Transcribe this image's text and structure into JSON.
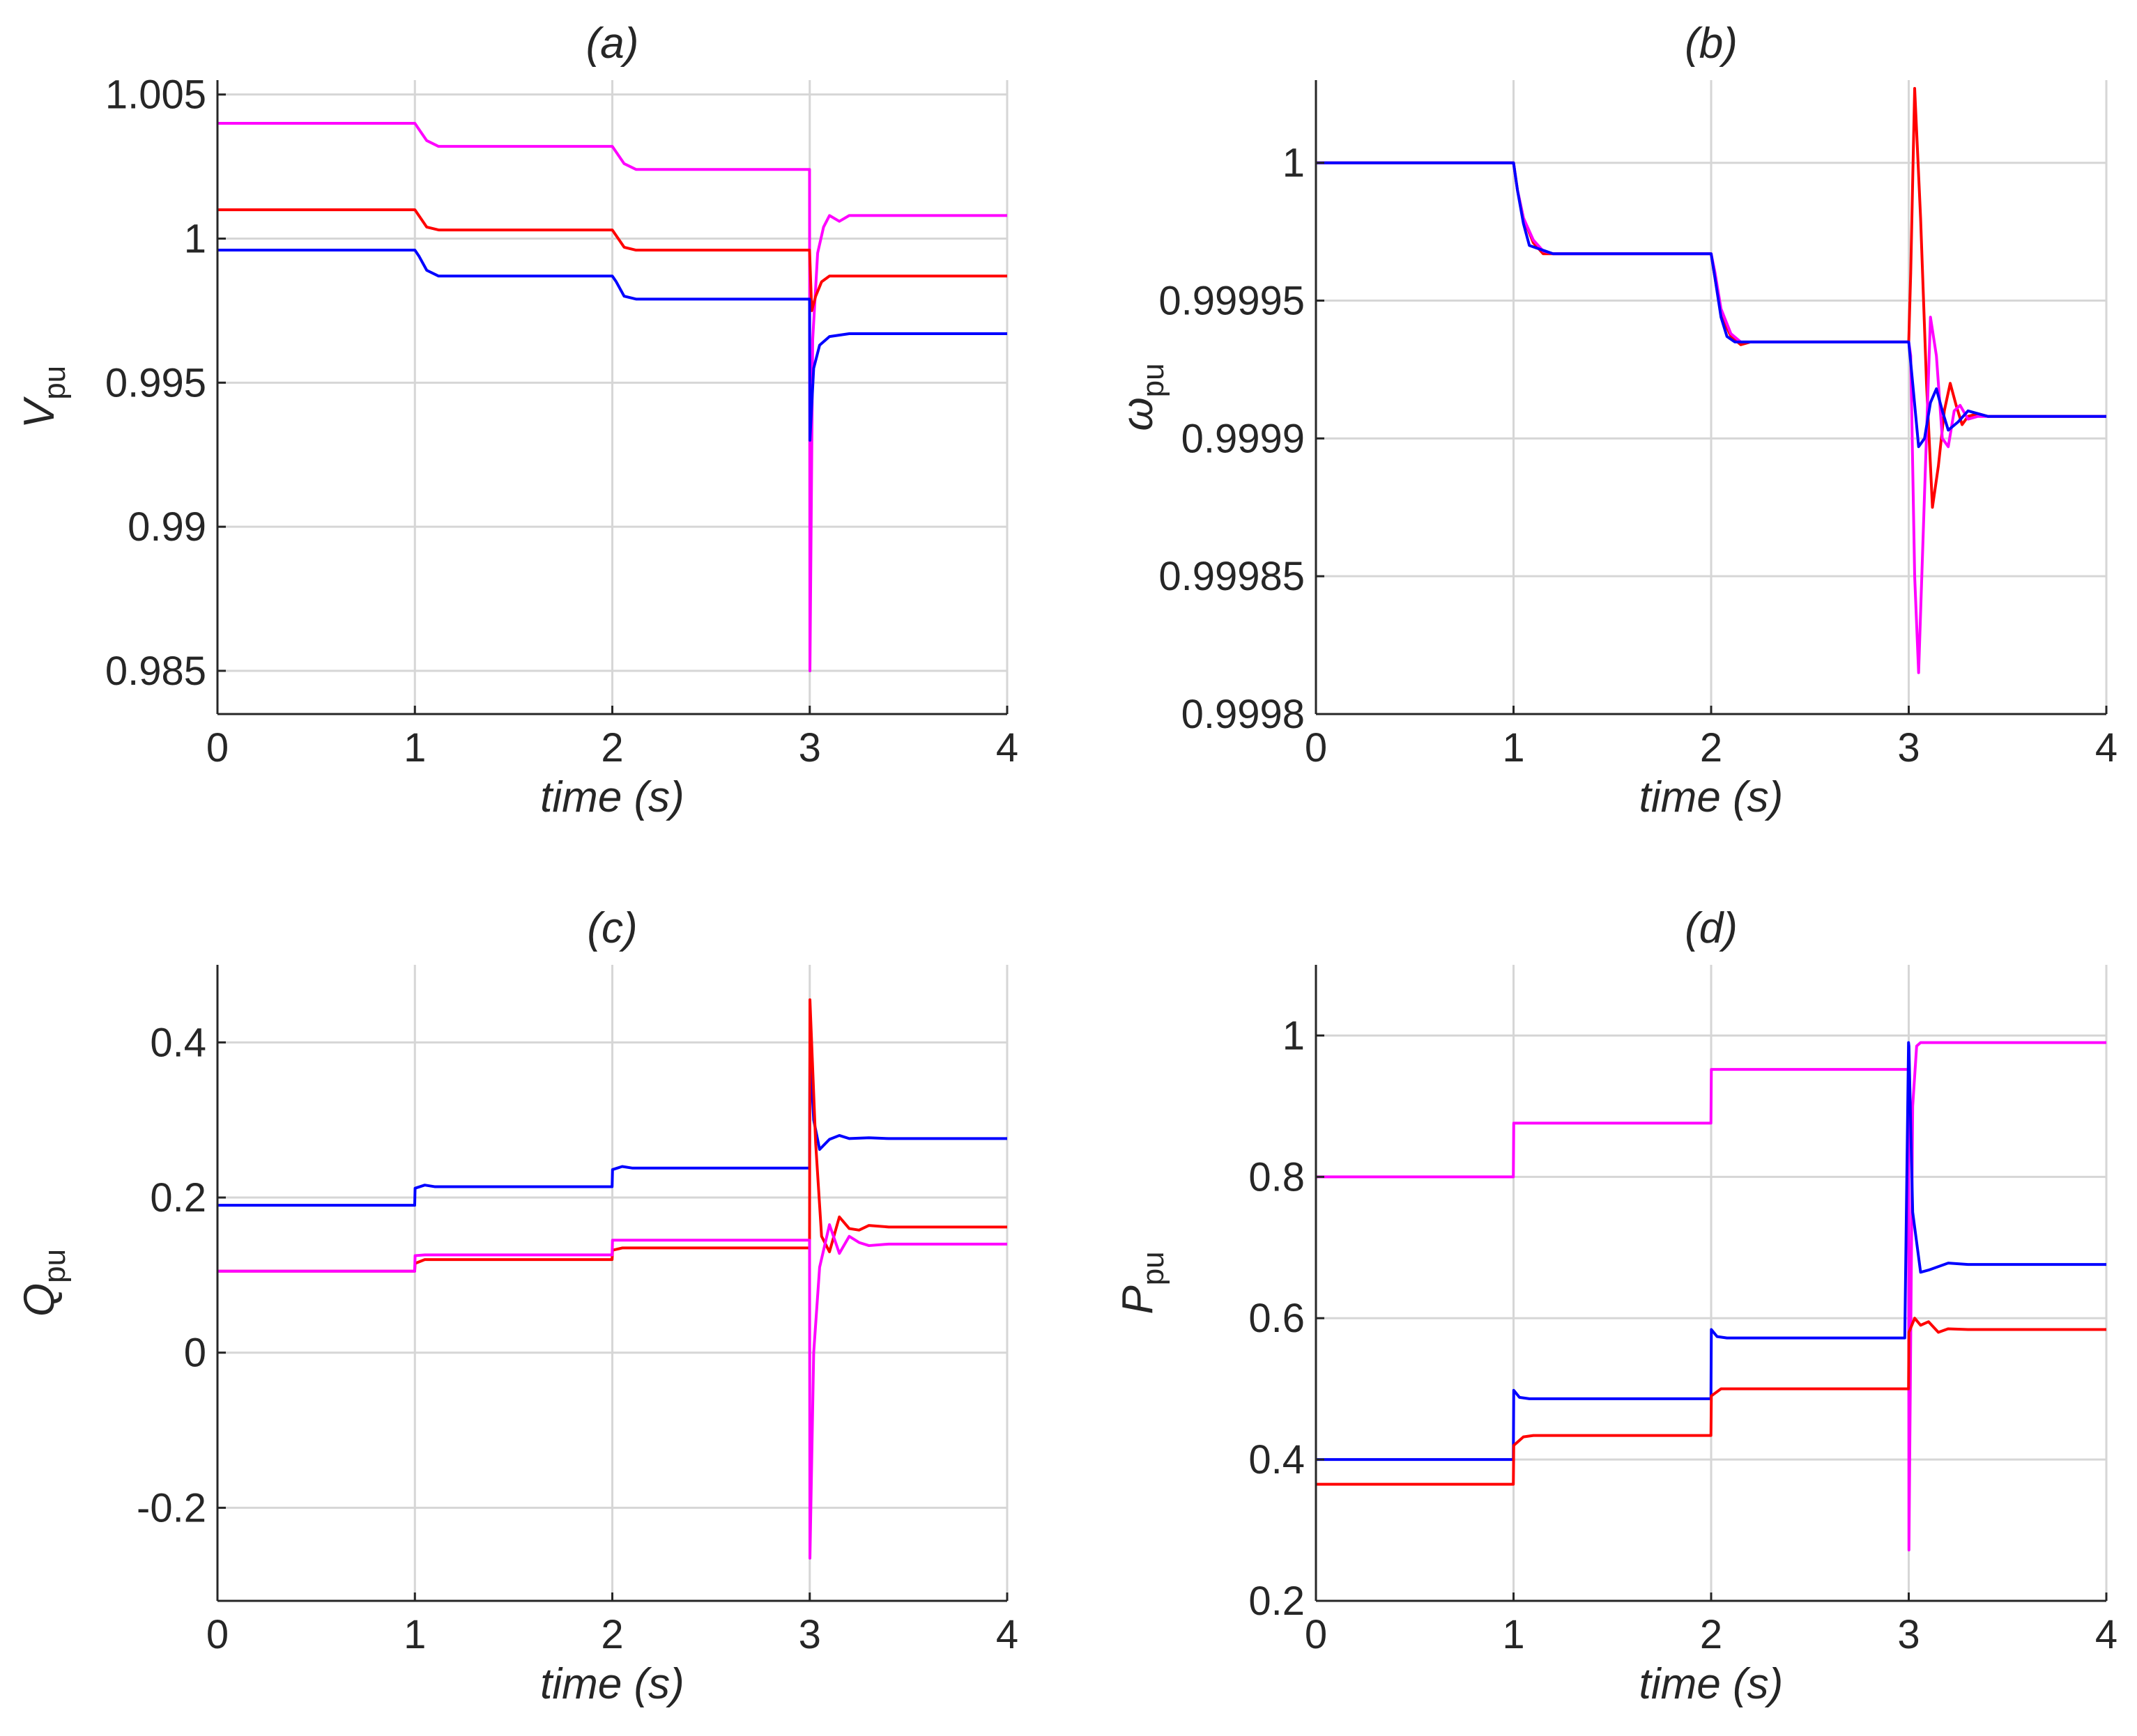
{
  "chart_data": [
    {
      "id": "a",
      "type": "line",
      "title": "(a)",
      "xlabel": "time (s)",
      "ylabel_main": "V",
      "ylabel_sub": "pu",
      "xlim": [
        0,
        4
      ],
      "ylim": [
        0.9835,
        1.0055
      ],
      "xticks": [
        0,
        1,
        2,
        3,
        4
      ],
      "xtick_labels": [
        "0",
        "1",
        "2",
        "3",
        "4"
      ],
      "yticks": [
        0.985,
        0.99,
        0.995,
        1.0,
        1.005
      ],
      "ytick_labels": [
        "0.985",
        "0.99",
        "0.995",
        "1",
        "1.005"
      ],
      "grid": true,
      "series": [
        {
          "name": "magenta",
          "color": "#ff00ff",
          "x": [
            0,
            1,
            1.02,
            1.06,
            1.12,
            1.2,
            2,
            2.02,
            2.06,
            2.12,
            2.2,
            2.999,
            3.001,
            3.015,
            3.04,
            3.07,
            3.1,
            3.15,
            3.2,
            3.3,
            4
          ],
          "y": [
            1.004,
            1.004,
            1.0038,
            1.0034,
            1.0032,
            1.0032,
            1.0032,
            1.003,
            1.0026,
            1.0024,
            1.0024,
            1.0024,
            0.985,
            0.9965,
            0.9995,
            1.0004,
            1.0008,
            1.0006,
            1.0008,
            1.0008,
            1.0008
          ]
        },
        {
          "name": "red",
          "color": "#ff0000",
          "x": [
            0,
            1,
            1.02,
            1.06,
            1.12,
            1.2,
            2,
            2.02,
            2.06,
            2.12,
            2.2,
            2.999,
            3.01,
            3.03,
            3.06,
            3.1,
            3.2,
            4
          ],
          "y": [
            1.001,
            1.001,
            1.0008,
            1.0004,
            1.0003,
            1.0003,
            1.0003,
            1.0001,
            0.9997,
            0.9996,
            0.9996,
            0.9996,
            0.9975,
            0.998,
            0.9985,
            0.9987,
            0.9987,
            0.9987
          ]
        },
        {
          "name": "blue",
          "color": "#0000ff",
          "x": [
            0,
            1,
            1.02,
            1.06,
            1.12,
            1.2,
            2,
            2.02,
            2.06,
            2.12,
            2.2,
            2.999,
            3.001,
            3.02,
            3.05,
            3.1,
            3.2,
            4
          ],
          "y": [
            0.9996,
            0.9996,
            0.9994,
            0.9989,
            0.9987,
            0.9987,
            0.9987,
            0.9985,
            0.998,
            0.9979,
            0.9979,
            0.9979,
            0.993,
            0.9955,
            0.9963,
            0.9966,
            0.9967,
            0.9967
          ]
        }
      ]
    },
    {
      "id": "b",
      "type": "line",
      "title": "(b)",
      "xlabel": "time (s)",
      "ylabel_main": "ω",
      "ylabel_sub": "pu",
      "xlim": [
        0,
        4
      ],
      "ylim": [
        0.9998,
        1.00003
      ],
      "xticks": [
        0,
        1,
        2,
        3,
        4
      ],
      "xtick_labels": [
        "0",
        "1",
        "2",
        "3",
        "4"
      ],
      "yticks": [
        0.9998,
        0.99985,
        0.9999,
        0.99995,
        1.0
      ],
      "ytick_labels": [
        "0.9998",
        "0.99985",
        "0.9999",
        "0.99995",
        "1"
      ],
      "grid": true,
      "series": [
        {
          "name": "red",
          "color": "#ff0000",
          "x": [
            0,
            1,
            1.02,
            1.05,
            1.1,
            1.15,
            1.2,
            2,
            2.02,
            2.05,
            2.1,
            2.15,
            2.2,
            3,
            3.01,
            3.03,
            3.06,
            3.09,
            3.12,
            3.15,
            3.18,
            3.21,
            3.24,
            3.27,
            3.3,
            3.35,
            3.4,
            4
          ],
          "y": [
            1.0,
            1.0,
            0.99999,
            0.99998,
            0.999971,
            0.999967,
            0.999967,
            0.999967,
            0.999958,
            0.999945,
            0.999937,
            0.999934,
            0.999935,
            0.999935,
            0.99996,
            1.000027,
            0.99998,
            0.99992,
            0.999875,
            0.99989,
            0.99991,
            0.99992,
            0.999912,
            0.999905,
            0.999908,
            0.999909,
            0.999908,
            0.999908
          ]
        },
        {
          "name": "magenta",
          "color": "#ff00ff",
          "x": [
            0,
            1,
            1.02,
            1.05,
            1.1,
            1.15,
            1.2,
            2,
            2.02,
            2.05,
            2.1,
            2.15,
            2.2,
            3,
            3.01,
            3.03,
            3.05,
            3.08,
            3.11,
            3.14,
            3.17,
            3.2,
            3.23,
            3.26,
            3.3,
            3.35,
            3.4,
            4
          ],
          "y": [
            1.0,
            1.0,
            0.99999,
            0.99998,
            0.999972,
            0.999968,
            0.999967,
            0.999967,
            0.99996,
            0.999947,
            0.999938,
            0.999935,
            0.999935,
            0.999935,
            0.99993,
            0.99985,
            0.999815,
            0.99988,
            0.999944,
            0.99993,
            0.9999,
            0.999897,
            0.99991,
            0.999912,
            0.999907,
            0.999908,
            0.999908,
            0.999908
          ]
        },
        {
          "name": "blue",
          "color": "#0000ff",
          "x": [
            0,
            1,
            1.02,
            1.05,
            1.08,
            1.12,
            1.16,
            1.2,
            2,
            2.02,
            2.05,
            2.08,
            2.12,
            2.2,
            3,
            3.02,
            3.05,
            3.08,
            3.11,
            3.14,
            3.17,
            3.2,
            3.25,
            3.3,
            3.4,
            4
          ],
          "y": [
            1.0,
            1.0,
            0.99999,
            0.999978,
            0.99997,
            0.999969,
            0.999968,
            0.999967,
            0.999967,
            0.999958,
            0.999944,
            0.999937,
            0.999935,
            0.999935,
            0.999935,
            0.99992,
            0.999897,
            0.9999,
            0.999913,
            0.999918,
            0.99991,
            0.999903,
            0.999906,
            0.99991,
            0.999908,
            0.999908
          ]
        }
      ]
    },
    {
      "id": "c",
      "type": "line",
      "title": "(c)",
      "xlabel": "time (s)",
      "ylabel_main": "Q",
      "ylabel_sub": "pu",
      "xlim": [
        0,
        4
      ],
      "ylim": [
        -0.32,
        0.5
      ],
      "xticks": [
        0,
        1,
        2,
        3,
        4
      ],
      "xtick_labels": [
        "0",
        "1",
        "2",
        "3",
        "4"
      ],
      "yticks": [
        -0.2,
        0,
        0.2,
        0.4
      ],
      "ytick_labels": [
        "-0.2",
        "0",
        "0.2",
        "0.4"
      ],
      "grid": true,
      "series": [
        {
          "name": "blue",
          "color": "#0000ff",
          "x": [
            0,
            0.999,
            1.001,
            1.05,
            1.1,
            1.2,
            1.999,
            2.001,
            2.05,
            2.1,
            2.2,
            2.999,
            3.001,
            3.02,
            3.05,
            3.1,
            3.15,
            3.2,
            3.3,
            3.4,
            4
          ],
          "y": [
            0.19,
            0.19,
            0.212,
            0.216,
            0.214,
            0.214,
            0.214,
            0.236,
            0.24,
            0.238,
            0.238,
            0.238,
            0.39,
            0.3,
            0.262,
            0.275,
            0.28,
            0.276,
            0.277,
            0.276,
            0.276
          ]
        },
        {
          "name": "red",
          "color": "#ff0000",
          "x": [
            0,
            0.999,
            1.001,
            1.05,
            1.1,
            1.2,
            1.999,
            2.001,
            2.05,
            2.1,
            2.2,
            2.999,
            3.001,
            3.03,
            3.06,
            3.1,
            3.15,
            3.2,
            3.25,
            3.3,
            3.4,
            4
          ],
          "y": [
            0.105,
            0.105,
            0.115,
            0.12,
            0.12,
            0.12,
            0.12,
            0.132,
            0.135,
            0.135,
            0.135,
            0.135,
            0.455,
            0.27,
            0.15,
            0.13,
            0.175,
            0.16,
            0.158,
            0.164,
            0.162,
            0.162
          ]
        },
        {
          "name": "magenta",
          "color": "#ff00ff",
          "x": [
            0,
            0.999,
            1.001,
            1.05,
            1.1,
            1.2,
            1.999,
            2.001,
            2.05,
            2.1,
            2.2,
            2.999,
            3.001,
            3.02,
            3.05,
            3.1,
            3.15,
            3.2,
            3.25,
            3.3,
            3.4,
            4
          ],
          "y": [
            0.105,
            0.105,
            0.125,
            0.126,
            0.126,
            0.126,
            0.126,
            0.145,
            0.145,
            0.145,
            0.145,
            0.145,
            -0.265,
            0.0,
            0.11,
            0.165,
            0.128,
            0.15,
            0.142,
            0.138,
            0.14,
            0.14
          ]
        }
      ]
    },
    {
      "id": "d",
      "type": "line",
      "title": "(d)",
      "xlabel": "time (s)",
      "ylabel_main": "P",
      "ylabel_sub": "pu",
      "xlim": [
        0,
        4
      ],
      "ylim": [
        0.2,
        1.1
      ],
      "xticks": [
        0,
        1,
        2,
        3,
        4
      ],
      "xtick_labels": [
        "0",
        "1",
        "2",
        "3",
        "4"
      ],
      "yticks": [
        0.2,
        0.4,
        0.6,
        0.8,
        1.0
      ],
      "ytick_labels": [
        "0.2",
        "0.4",
        "0.6",
        "0.8",
        "1"
      ],
      "grid": true,
      "series": [
        {
          "name": "magenta",
          "color": "#ff00ff",
          "x": [
            0,
            0.999,
            1.001,
            1.999,
            2.001,
            2.999,
            3.001,
            3.02,
            3.04,
            3.06,
            4
          ],
          "y": [
            0.8,
            0.8,
            0.876,
            0.876,
            0.952,
            0.952,
            0.272,
            0.9,
            0.985,
            0.99,
            0.99
          ]
        },
        {
          "name": "blue",
          "color": "#0000ff",
          "x": [
            0,
            0.999,
            1.001,
            1.03,
            1.08,
            1.2,
            1.999,
            2.001,
            2.03,
            2.08,
            2.2,
            2.98,
            2.999,
            3.001,
            3.02,
            3.06,
            3.1,
            3.2,
            3.3,
            4
          ],
          "y": [
            0.4,
            0.4,
            0.498,
            0.488,
            0.486,
            0.486,
            0.486,
            0.584,
            0.574,
            0.572,
            0.572,
            0.572,
            0.99,
            0.985,
            0.75,
            0.665,
            0.668,
            0.678,
            0.676,
            0.676
          ]
        },
        {
          "name": "red",
          "color": "#ff0000",
          "x": [
            0,
            0.999,
            1.001,
            1.05,
            1.1,
            1.2,
            1.999,
            2.001,
            2.05,
            2.1,
            2.2,
            2.999,
            3.001,
            3.03,
            3.06,
            3.1,
            3.15,
            3.2,
            3.3,
            4
          ],
          "y": [
            0.365,
            0.365,
            0.42,
            0.432,
            0.434,
            0.434,
            0.434,
            0.49,
            0.5,
            0.5,
            0.5,
            0.5,
            0.58,
            0.6,
            0.59,
            0.595,
            0.58,
            0.585,
            0.584,
            0.584
          ]
        }
      ]
    }
  ]
}
